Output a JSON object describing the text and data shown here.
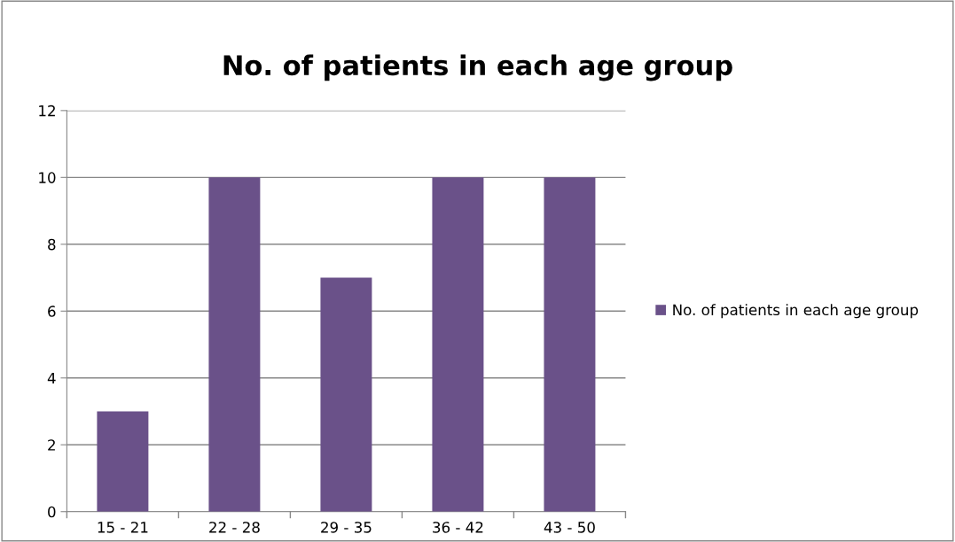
{
  "chart_data": {
    "type": "bar",
    "title": "No. of patients in each age group",
    "categories": [
      "15 - 21",
      "22 - 28",
      "29 - 35",
      "36 - 42",
      "43 - 50"
    ],
    "series": [
      {
        "name": "No. of patients in each age group",
        "color": "#6a5189",
        "values": [
          3,
          10,
          7,
          10,
          10
        ]
      }
    ],
    "ylim": [
      0,
      12
    ],
    "yticks": [
      0,
      2,
      4,
      6,
      8,
      10,
      12
    ],
    "grid": "y",
    "legend": "right"
  }
}
